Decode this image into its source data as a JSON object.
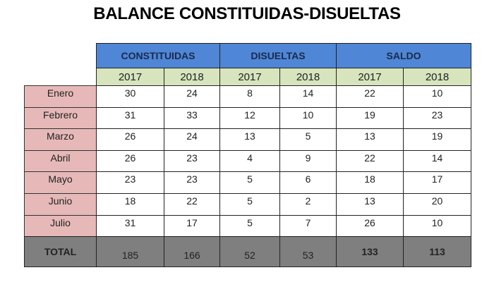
{
  "title": "BALANCE CONSTITUIDAS-DISUELTAS",
  "groups": [
    "CONSTITUIDAS",
    "DISUELTAS",
    "SALDO"
  ],
  "years": [
    "2017",
    "2018",
    "2017",
    "2018",
    "2017",
    "2018"
  ],
  "rows": [
    {
      "month": "Enero",
      "values": [
        "30",
        "24",
        "8",
        "14",
        "22",
        "10"
      ]
    },
    {
      "month": "Febrero",
      "values": [
        "31",
        "33",
        "12",
        "10",
        "19",
        "23"
      ]
    },
    {
      "month": "Marzo",
      "values": [
        "26",
        "24",
        "13",
        "5",
        "13",
        "19"
      ]
    },
    {
      "month": "Abril",
      "values": [
        "26",
        "23",
        "4",
        "9",
        "22",
        "14"
      ]
    },
    {
      "month": "Mayo",
      "values": [
        "23",
        "23",
        "5",
        "6",
        "18",
        "17"
      ]
    },
    {
      "month": "Junio",
      "values": [
        "18",
        "22",
        "5",
        "2",
        "13",
        "20"
      ]
    },
    {
      "month": "Julio",
      "values": [
        "31",
        "17",
        "5",
        "7",
        "26",
        "10"
      ]
    }
  ],
  "total": {
    "label": "TOTAL",
    "values": [
      "185",
      "166",
      "52",
      "53",
      "133",
      "113"
    ]
  },
  "colors": {
    "group_header": "#4f86d6",
    "year_header": "#d7e4bd",
    "month_cell": "#e6b9b8",
    "total_row": "#7f7f7f"
  }
}
